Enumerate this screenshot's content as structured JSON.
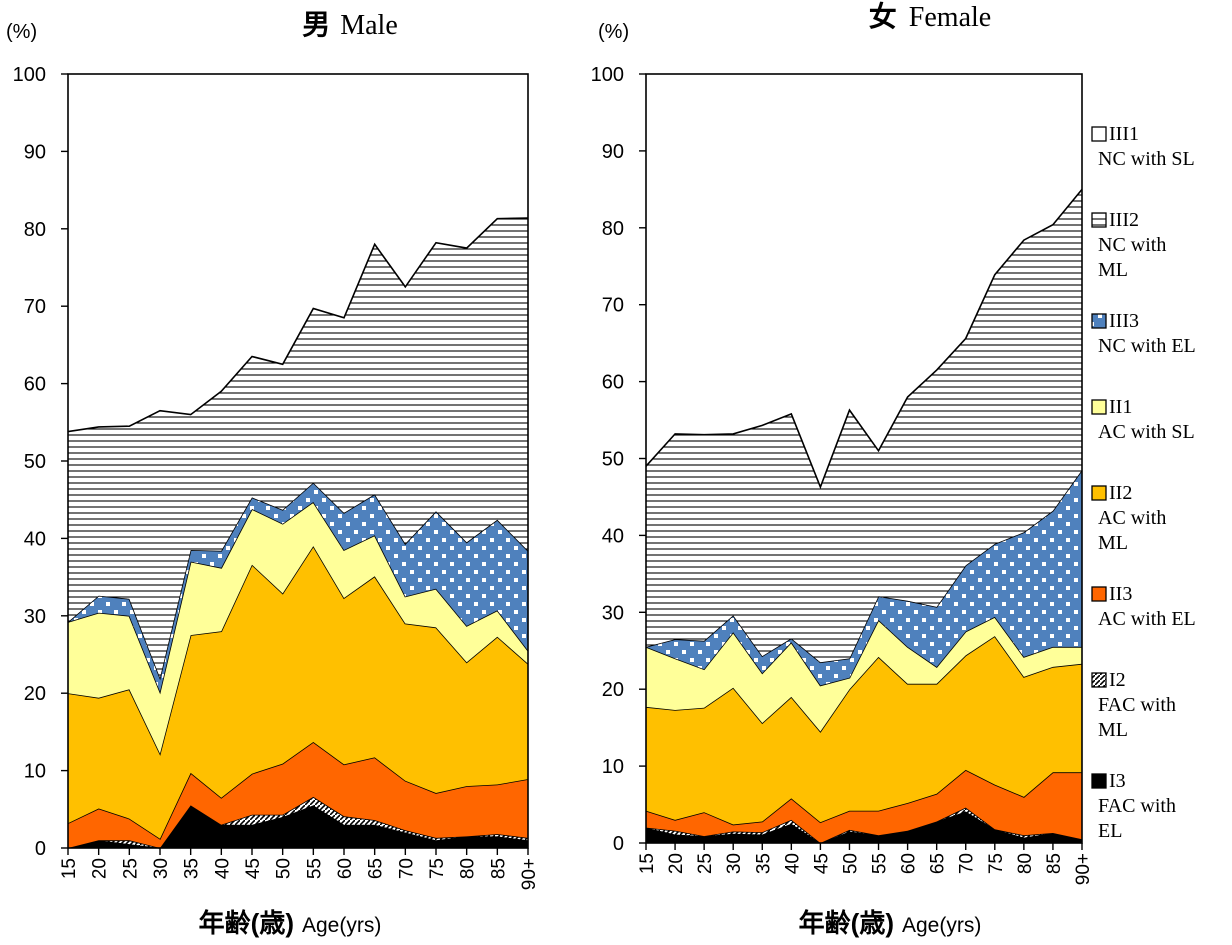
{
  "colors": {
    "III1": "#ffffff",
    "III2": "#ffffff",
    "III3": "#4f81bd",
    "II1": "#ffff99",
    "II2": "#ffc000",
    "II3": "#ff6600",
    "I2": "#ffffff",
    "I3": "#000000"
  },
  "legend": [
    {
      "key": "III1",
      "code": "III1",
      "desc": [
        "NC with SL"
      ]
    },
    {
      "key": "III2",
      "code": "III2",
      "desc": [
        "NC with",
        "ML"
      ]
    },
    {
      "key": "III3",
      "code": "III3",
      "desc": [
        "NC with EL"
      ]
    },
    {
      "key": "II1",
      "code": "II1",
      "desc": [
        "AC with SL"
      ]
    },
    {
      "key": "II2",
      "code": "II2",
      "desc": [
        "AC with",
        "ML"
      ]
    },
    {
      "key": "II3",
      "code": "II3",
      "desc": [
        "AC with EL"
      ]
    },
    {
      "key": "I2",
      "code": "I2",
      "desc": [
        "FAC with",
        "ML"
      ]
    },
    {
      "key": "I3",
      "code": "I3",
      "desc": [
        "FAC with",
        "EL"
      ]
    }
  ],
  "chart_data": [
    {
      "type": "area",
      "stacked": true,
      "title": "男 Male",
      "title_cjk": "男",
      "title_latin": "Male",
      "ylabel": "(%)",
      "xlabel_cjk": "年齢(歳)",
      "xlabel_latin": "Age(yrs)",
      "ylim": [
        0,
        100
      ],
      "yticks": [
        0,
        10,
        20,
        30,
        40,
        50,
        60,
        70,
        80,
        90,
        100
      ],
      "categories": [
        "15",
        "20",
        "25",
        "30",
        "35",
        "40",
        "45",
        "50",
        "55",
        "60",
        "65",
        "70",
        "75",
        "80",
        "85",
        "90+"
      ],
      "series": [
        {
          "key": "I3",
          "values": [
            0,
            1,
            0.5,
            0,
            5.5,
            3,
            3,
            4,
            5.5,
            3,
            3,
            2,
            1,
            1.5,
            1.5,
            1
          ]
        },
        {
          "key": "I2",
          "values": [
            0,
            0,
            0.5,
            0,
            0,
            0,
            1.3,
            0.3,
            1.1,
            1.1,
            0.6,
            0.3,
            0.3,
            0,
            0.3,
            0.3
          ]
        },
        {
          "key": "II3",
          "values": [
            3.2,
            4.1,
            2.8,
            1.2,
            4.2,
            3.5,
            5.3,
            6.6,
            7.1,
            6.7,
            8.1,
            6.4,
            5.8,
            6.5,
            6.4,
            7.6
          ]
        },
        {
          "key": "II2",
          "values": [
            16.8,
            14.3,
            16.7,
            11,
            17.8,
            21.5,
            27,
            22,
            25.3,
            21.5,
            23.4,
            20.3,
            21.4,
            16,
            19.1,
            14.9
          ]
        },
        {
          "key": "II1",
          "values": [
            9.2,
            11,
            9.5,
            8,
            9.5,
            8.2,
            7.2,
            9,
            5.7,
            6.2,
            5.3,
            3.5,
            5,
            4.7,
            3.4,
            1.7
          ]
        },
        {
          "key": "III3",
          "values": [
            0,
            2.2,
            2.2,
            1.8,
            1.5,
            2.2,
            1.5,
            1.8,
            2.5,
            4.8,
            5.3,
            6.8,
            10,
            10.8,
            11.7,
            12.9
          ]
        },
        {
          "key": "III2",
          "values": [
            24.6,
            21.8,
            22.3,
            34.5,
            17.5,
            20.6,
            18.2,
            18.8,
            22.5,
            25.2,
            32.3,
            33.2,
            34.7,
            38,
            38.9,
            43
          ]
        }
      ]
    },
    {
      "type": "area",
      "stacked": true,
      "title": "女 Female",
      "title_cjk": "女",
      "title_latin": "Female",
      "ylabel": "(%)",
      "xlabel_cjk": "年齢(歳)",
      "xlabel_latin": "Age(yrs)",
      "ylim": [
        0,
        100
      ],
      "yticks": [
        0,
        10,
        20,
        30,
        40,
        50,
        60,
        70,
        80,
        90,
        100
      ],
      "categories": [
        "15",
        "20",
        "25",
        "30",
        "35",
        "40",
        "45",
        "50",
        "55",
        "60",
        "65",
        "70",
        "75",
        "80",
        "85",
        "90+"
      ],
      "series": [
        {
          "key": "I3",
          "values": [
            2,
            1.1,
            0.9,
            1.2,
            1.1,
            2.5,
            0,
            1.5,
            1,
            1.6,
            2.8,
            4.1,
            1.8,
            0.7,
            1.3,
            0.5
          ]
        },
        {
          "key": "I2",
          "values": [
            0,
            0.5,
            0,
            0.3,
            0.3,
            0.5,
            0,
            0.2,
            0,
            0,
            0,
            0.5,
            0,
            0.3,
            0,
            0
          ]
        },
        {
          "key": "II3",
          "values": [
            2.2,
            1.4,
            3.1,
            0.9,
            1.4,
            2.8,
            2.7,
            2.5,
            3.2,
            3.6,
            3.6,
            4.9,
            5.8,
            5,
            7.9,
            8.7
          ]
        },
        {
          "key": "II2",
          "values": [
            13.5,
            14.3,
            13.6,
            17.8,
            12.8,
            13.2,
            11.8,
            15.8,
            20,
            15.5,
            14.3,
            14.9,
            19.3,
            15.6,
            13.7,
            14.1
          ]
        },
        {
          "key": "II1",
          "values": [
            7.8,
            6.7,
            5,
            7.2,
            6.5,
            7.1,
            6,
            1.5,
            4.8,
            4.8,
            2.2,
            3.1,
            2.5,
            2.6,
            2.6,
            2.2
          ]
        },
        {
          "key": "III3",
          "values": [
            0,
            2.5,
            3.7,
            2.2,
            2.2,
            0.5,
            3,
            2.5,
            3.1,
            6,
            7.8,
            8.6,
            9.5,
            16.2,
            17.7,
            23
          ]
        },
        {
          "key": "III2",
          "values": [
            23.5,
            26.7,
            26.8,
            23.6,
            30,
            29.2,
            22.8,
            32.3,
            18.9,
            26.5,
            30.8,
            29.5,
            35,
            38,
            37.2,
            36.5
          ]
        }
      ]
    }
  ]
}
